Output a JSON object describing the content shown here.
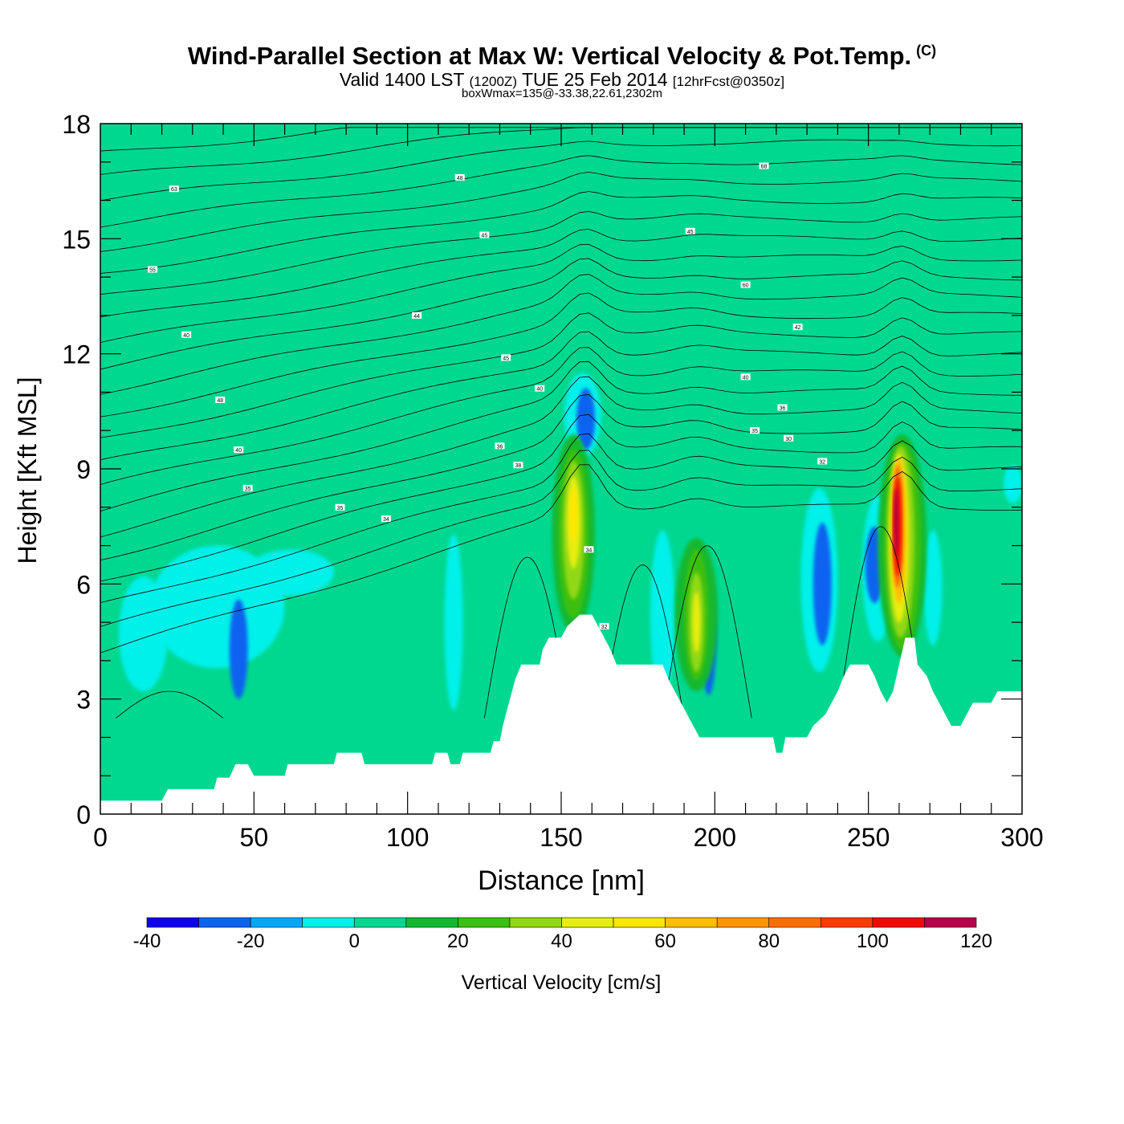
{
  "title": {
    "main": "Wind-Parallel Section at Max W: Vertical Velocity & Pot.Temp.",
    "copyright": "(C)",
    "valid_prefix": "Valid 1400 LST",
    "valid_utc": "(1200Z)",
    "valid_date": "TUE 25 Feb 2014",
    "forecast": "[12hrFcst@0350z]",
    "boxwmax": "boxWmax=135@-33.38,22.61,2302m"
  },
  "chart_data": {
    "type": "heatmap",
    "xlabel": "Distance [nm]",
    "ylabel": "Height [Kft MSL]",
    "xlim": [
      0,
      300
    ],
    "ylim": [
      0,
      18
    ],
    "x_ticks": [
      0,
      50,
      100,
      150,
      200,
      250,
      300
    ],
    "y_ticks": [
      0,
      3,
      6,
      9,
      12,
      15,
      18
    ],
    "colorbar": {
      "label": "Vertical Velocity [cm/s]",
      "tick_values": [
        -40,
        -20,
        0,
        20,
        40,
        60,
        80,
        100,
        120
      ],
      "levels": [
        -40,
        -30,
        -20,
        -10,
        0,
        10,
        20,
        30,
        40,
        50,
        60,
        70,
        80,
        90,
        100,
        110,
        120
      ],
      "colors": [
        "#0f00ee",
        "#0b64f0",
        "#00a8f5",
        "#00f0ea",
        "#00d890",
        "#12b830",
        "#3cc010",
        "#92d812",
        "#e6ee10",
        "#ffe600",
        "#ffbe00",
        "#ff9600",
        "#ff6e00",
        "#ff3c00",
        "#f00a00",
        "#b8004a"
      ]
    },
    "terrain_kft": [
      [
        0,
        0.35
      ],
      [
        20,
        0.35
      ],
      [
        22,
        0.65
      ],
      [
        37,
        0.65
      ],
      [
        38,
        0.95
      ],
      [
        42,
        0.95
      ],
      [
        44,
        1.3
      ],
      [
        48,
        1.3
      ],
      [
        50,
        1.0
      ],
      [
        60,
        1.0
      ],
      [
        61,
        1.3
      ],
      [
        76,
        1.3
      ],
      [
        77,
        1.6
      ],
      [
        85,
        1.6
      ],
      [
        86,
        1.3
      ],
      [
        97,
        1.3
      ],
      [
        100,
        1.3
      ],
      [
        108,
        1.3
      ],
      [
        109,
        1.6
      ],
      [
        113,
        1.6
      ],
      [
        114,
        1.3
      ],
      [
        117,
        1.3
      ],
      [
        118,
        1.6
      ],
      [
        127,
        1.6
      ],
      [
        128,
        1.9
      ],
      [
        130,
        1.9
      ],
      [
        131,
        2.3
      ],
      [
        133,
        2.9
      ],
      [
        135,
        3.5
      ],
      [
        137,
        3.9
      ],
      [
        143,
        3.9
      ],
      [
        144,
        4.3
      ],
      [
        146,
        4.6
      ],
      [
        150,
        4.6
      ],
      [
        152,
        4.9
      ],
      [
        156,
        5.2
      ],
      [
        160,
        5.2
      ],
      [
        162,
        4.9
      ],
      [
        164,
        4.6
      ],
      [
        166,
        4.3
      ],
      [
        168,
        3.9
      ],
      [
        183,
        3.9
      ],
      [
        185,
        3.5
      ],
      [
        187,
        3.2
      ],
      [
        189,
        2.9
      ],
      [
        191,
        2.6
      ],
      [
        193,
        2.3
      ],
      [
        195,
        2.0
      ],
      [
        215,
        2.0
      ],
      [
        219,
        2.0
      ],
      [
        220,
        1.6
      ],
      [
        222,
        1.6
      ],
      [
        223,
        2.0
      ],
      [
        230,
        2.0
      ],
      [
        232,
        2.3
      ],
      [
        236,
        2.6
      ],
      [
        238,
        2.9
      ],
      [
        240,
        3.2
      ],
      [
        242,
        3.6
      ],
      [
        244,
        3.9
      ],
      [
        250,
        3.9
      ],
      [
        252,
        3.6
      ],
      [
        254,
        3.2
      ],
      [
        256,
        2.9
      ],
      [
        258,
        3.2
      ],
      [
        260,
        3.9
      ],
      [
        262,
        4.6
      ],
      [
        265,
        4.6
      ],
      [
        266,
        3.9
      ],
      [
        269,
        3.6
      ],
      [
        271,
        3.2
      ],
      [
        273,
        2.9
      ],
      [
        275,
        2.6
      ],
      [
        277,
        2.3
      ],
      [
        280,
        2.3
      ],
      [
        282,
        2.6
      ],
      [
        284,
        2.9
      ],
      [
        290,
        2.9
      ],
      [
        292,
        3.2
      ],
      [
        300,
        3.2
      ]
    ],
    "isentrope_labels": [
      {
        "x": 24,
        "y": 16.3,
        "text": "63"
      },
      {
        "x": 117,
        "y": 16.6,
        "text": "48"
      },
      {
        "x": 216,
        "y": 16.9,
        "text": "68"
      },
      {
        "x": 125,
        "y": 15.1,
        "text": "45"
      },
      {
        "x": 192,
        "y": 15.2,
        "text": "45"
      },
      {
        "x": 17,
        "y": 14.2,
        "text": "55"
      },
      {
        "x": 210,
        "y": 13.8,
        "text": "60"
      },
      {
        "x": 103,
        "y": 13.0,
        "text": "44"
      },
      {
        "x": 28,
        "y": 12.5,
        "text": "40"
      },
      {
        "x": 227,
        "y": 12.7,
        "text": "42"
      },
      {
        "x": 132,
        "y": 11.9,
        "text": "45"
      },
      {
        "x": 143,
        "y": 11.1,
        "text": "40"
      },
      {
        "x": 210,
        "y": 11.4,
        "text": "40"
      },
      {
        "x": 39,
        "y": 10.8,
        "text": "48"
      },
      {
        "x": 222,
        "y": 10.6,
        "text": "36"
      },
      {
        "x": 130,
        "y": 9.6,
        "text": "36"
      },
      {
        "x": 213,
        "y": 10.0,
        "text": "35"
      },
      {
        "x": 224,
        "y": 9.8,
        "text": "30"
      },
      {
        "x": 45,
        "y": 9.5,
        "text": "40"
      },
      {
        "x": 136,
        "y": 9.1,
        "text": "38"
      },
      {
        "x": 235,
        "y": 9.2,
        "text": "32"
      },
      {
        "x": 48,
        "y": 8.5,
        "text": "35"
      },
      {
        "x": 78,
        "y": 8.0,
        "text": "35"
      },
      {
        "x": 93,
        "y": 7.7,
        "text": "34"
      },
      {
        "x": 159,
        "y": 6.9,
        "text": "34"
      },
      {
        "x": 164,
        "y": 4.9,
        "text": "32"
      }
    ]
  },
  "colors": {
    "background": "#ffffff",
    "axis": "#000000",
    "isentrope": "#000000"
  }
}
